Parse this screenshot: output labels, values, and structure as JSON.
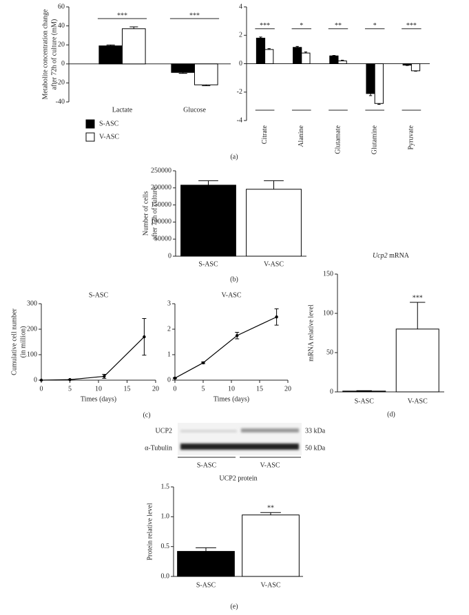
{
  "chart_data": [
    {
      "type": "bar",
      "categories": [
        "Lactate",
        "Glucose"
      ],
      "series": [
        {
          "name": "S-ASC",
          "color": "#000000",
          "values": [
            19,
            -9
          ],
          "errors": [
            1,
            1
          ]
        },
        {
          "name": "V-ASC",
          "color": "#ffffff",
          "values": [
            37,
            -22
          ],
          "errors": [
            2,
            1
          ]
        }
      ],
      "ylim": [
        -40,
        60
      ],
      "yticks": [
        -40,
        -20,
        0,
        20,
        40,
        60
      ],
      "ylabel": [
        "Metabolite concentration change",
        "after 72h of culture (mM)"
      ],
      "significance": [
        "***",
        "***"
      ]
    },
    {
      "type": "bar",
      "categories": [
        "Citrate",
        "Alanine",
        "Glutamate",
        "Glutamine",
        "Pyruvate"
      ],
      "series": [
        {
          "name": "S-ASC",
          "color": "#000000",
          "values": [
            1.8,
            1.15,
            0.55,
            -2.1,
            -0.1
          ],
          "errors": [
            0.08,
            0.07,
            0.03,
            0.15,
            0.03
          ]
        },
        {
          "name": "V-ASC",
          "color": "#ffffff",
          "values": [
            1.0,
            0.75,
            0.2,
            -2.8,
            -0.5
          ],
          "errors": [
            0.06,
            0.08,
            0.05,
            0.06,
            0.03
          ]
        }
      ],
      "ylim": [
        -4,
        4
      ],
      "yticks": [
        -4,
        -2,
        0,
        2,
        4
      ],
      "significance": [
        "***",
        "*",
        "**",
        "*",
        "***"
      ]
    },
    {
      "type": "bar",
      "categories": [
        "S-ASC",
        "V-ASC"
      ],
      "values": [
        208000,
        196000
      ],
      "errors": [
        13000,
        25000
      ],
      "colors": [
        "#000000",
        "#ffffff"
      ],
      "ylim": [
        0,
        250000
      ],
      "yticks": [
        0,
        50000,
        100000,
        150000,
        200000,
        250000
      ],
      "ylabel": [
        "Number of cells",
        "after 72h of culture"
      ]
    },
    {
      "type": "line",
      "title": "S-ASC",
      "x": [
        0,
        5,
        11,
        18
      ],
      "values": [
        0,
        2,
        15,
        170
      ],
      "errors": [
        0,
        1,
        8,
        72
      ],
      "color": "#000000",
      "xlim": [
        0,
        20
      ],
      "xticks": [
        0,
        5,
        10,
        15,
        20
      ],
      "ylim": [
        0,
        300
      ],
      "yticks": [
        0,
        100,
        200,
        300
      ],
      "xlabel": "Times (days)",
      "ylabel": [
        "Cumulative cell number",
        "(in million)"
      ]
    },
    {
      "type": "line",
      "title": "V-ASC",
      "x": [
        0,
        5,
        11,
        18
      ],
      "values": [
        0.08,
        0.68,
        1.75,
        2.48
      ],
      "errors": [
        0.02,
        0.03,
        0.13,
        0.32
      ],
      "color": "#000000",
      "xlim": [
        0,
        20
      ],
      "xticks": [
        0,
        5,
        10,
        15,
        20
      ],
      "ylim": [
        0,
        3
      ],
      "yticks": [
        0,
        1,
        2,
        3
      ],
      "xlabel": "Times (days)"
    },
    {
      "type": "bar",
      "title": [
        "Ucp2",
        "mRNA"
      ],
      "categories": [
        "S-ASC",
        "V-ASC"
      ],
      "values": [
        1,
        80
      ],
      "errors": [
        0.5,
        34
      ],
      "colors": [
        "#000000",
        "#ffffff"
      ],
      "ylim": [
        0,
        150
      ],
      "yticks": [
        0,
        50,
        100,
        150
      ],
      "ylabel": [
        "mRNA relative level"
      ],
      "annotation": "***"
    },
    {
      "type": "bar",
      "title": "UCP2 protein",
      "categories": [
        "S-ASC",
        "V-ASC"
      ],
      "values": [
        0.42,
        1.03
      ],
      "errors": [
        0.06,
        0.04
      ],
      "colors": [
        "#000000",
        "#ffffff"
      ],
      "ylim": [
        0,
        1.5
      ],
      "yticks": [
        {
          "value": 0,
          "label": "0.0"
        },
        {
          "value": 0.5,
          "label": "0.5"
        },
        {
          "value": 1,
          "label": "1.0"
        },
        {
          "value": 1.5,
          "label": "1.5"
        }
      ],
      "ylabel": [
        "Protein relative level"
      ],
      "annotation": "**"
    }
  ],
  "blot": {
    "rows": [
      "UCP2",
      "α-Tubulin"
    ],
    "sizes": [
      "33 kDa",
      "50 kDa"
    ],
    "groups": [
      "S-ASC",
      "V-ASC"
    ]
  },
  "panel_labels": [
    "(a)",
    "(b)",
    "(c)",
    "(d)",
    "(e)"
  ]
}
